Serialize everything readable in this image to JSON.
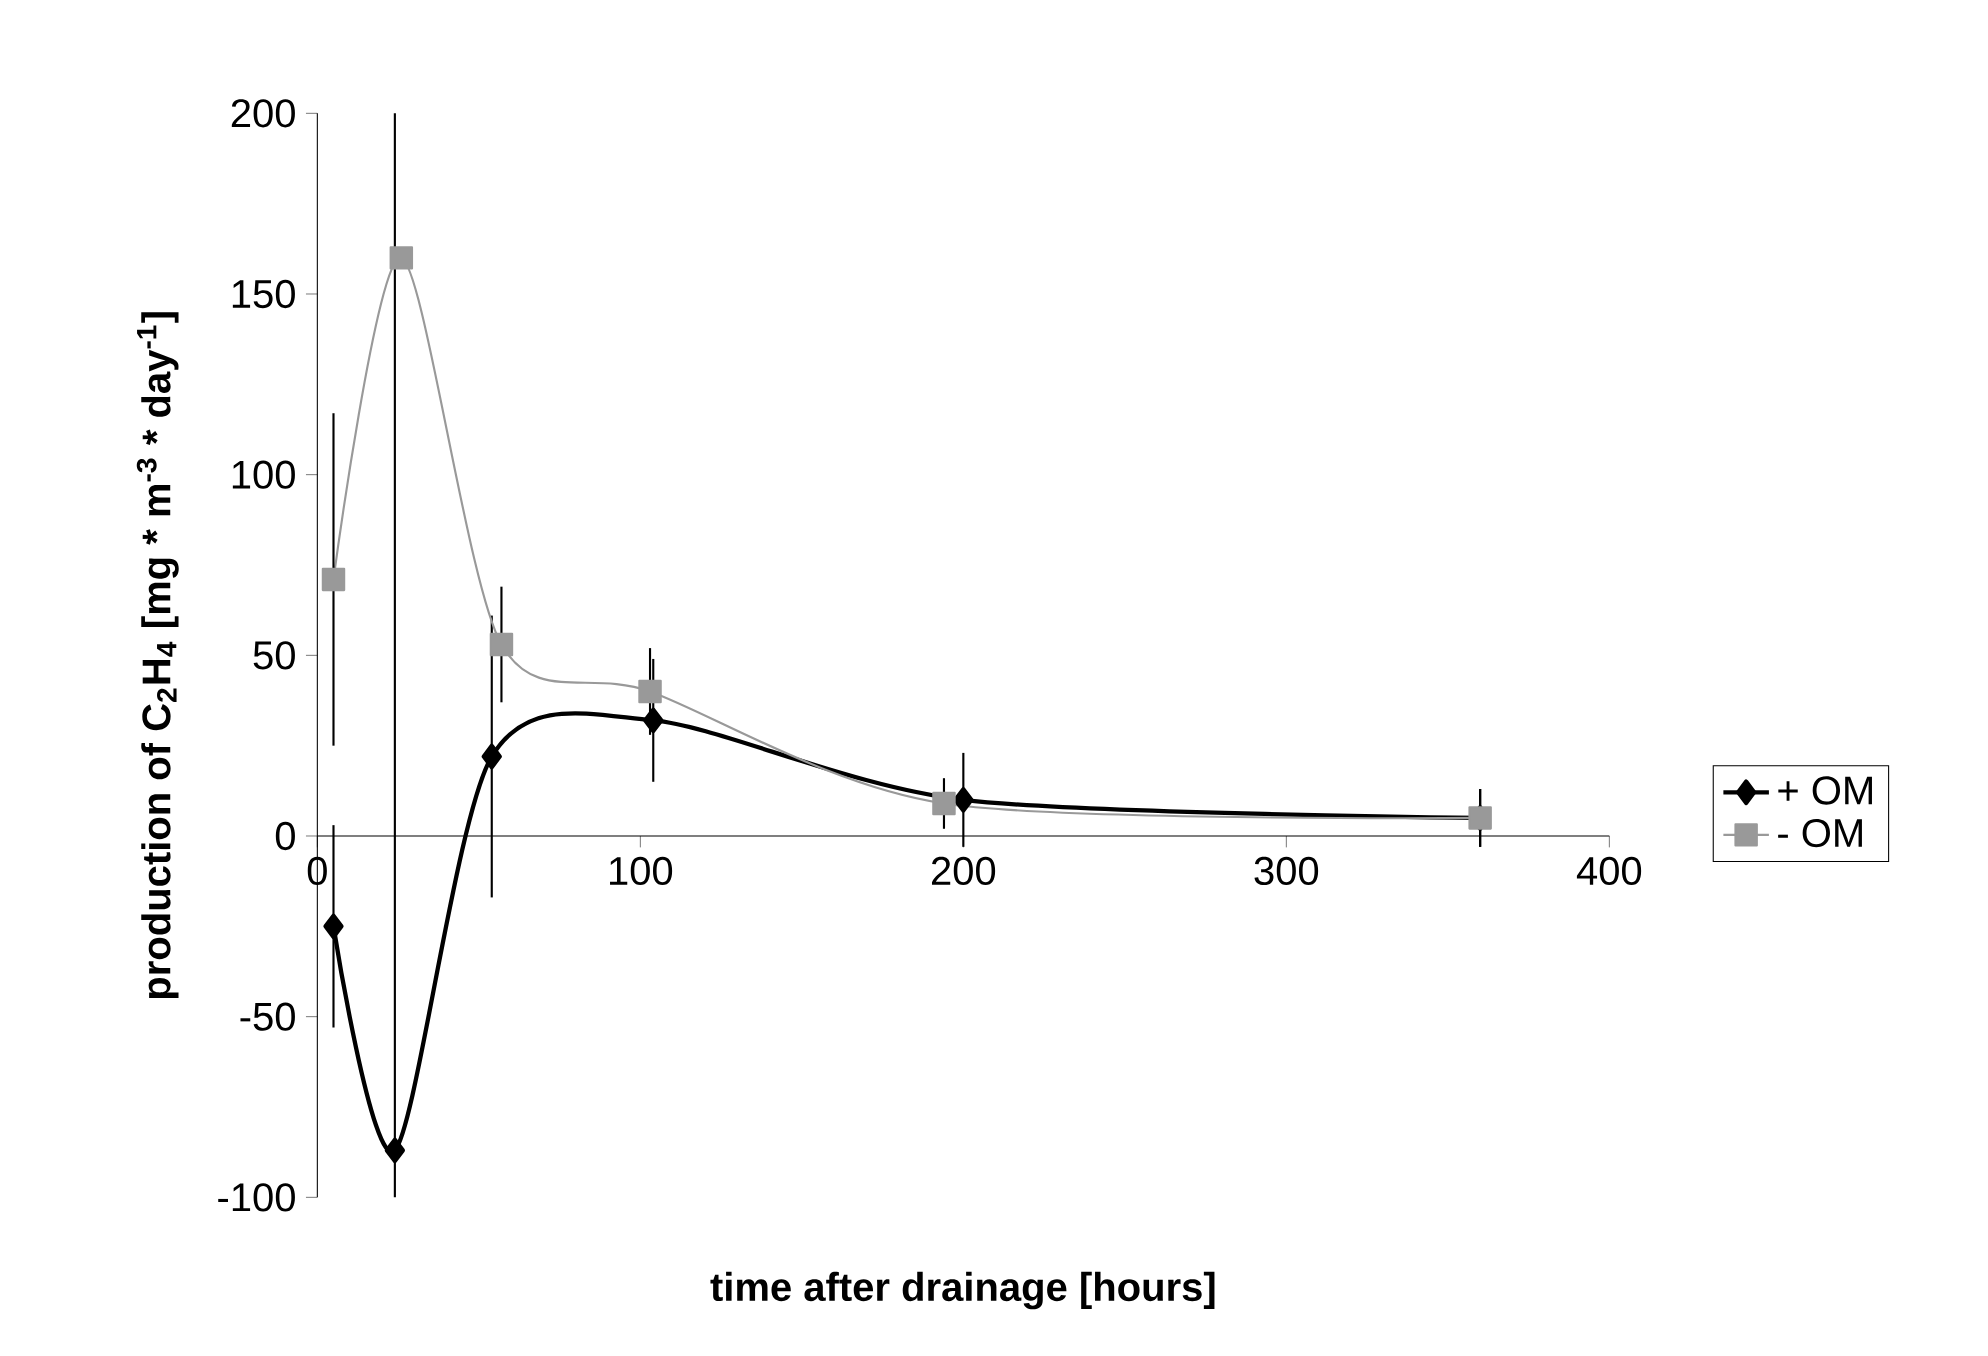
{
  "chart_data": {
    "type": "line",
    "xlabel": "time after drainage [hours]",
    "ylabel": "production of C$_{2}$H$_{4}$ [mg * m$^{-3}$ * day$^{-1}$]",
    "xlim": [
      0,
      400
    ],
    "xticks": [
      0,
      100,
      200,
      300,
      400
    ],
    "ylim": [
      -100,
      200
    ],
    "yticks": [
      -100,
      -50,
      0,
      50,
      100,
      150,
      200
    ],
    "legend": "right",
    "grid": false,
    "ref_lines": [
      {
        "axis": "x",
        "value": 24,
        "color": "#000000"
      }
    ],
    "series": [
      {
        "name": "+ OM",
        "color": "#000000",
        "marker": "diamond",
        "x": [
          5,
          24,
          54,
          104,
          200,
          360
        ],
        "values": [
          -25,
          -87,
          22,
          32,
          10,
          5
        ],
        "errors": [
          28,
          null,
          39,
          17,
          13,
          8
        ]
      },
      {
        "name": "- OM",
        "color": "#999999",
        "marker": "square",
        "x": [
          5,
          26,
          57,
          103,
          194,
          360
        ],
        "values": [
          71,
          160,
          53,
          40,
          9,
          5
        ],
        "errors": [
          46,
          null,
          16,
          12,
          7,
          8
        ]
      }
    ]
  }
}
